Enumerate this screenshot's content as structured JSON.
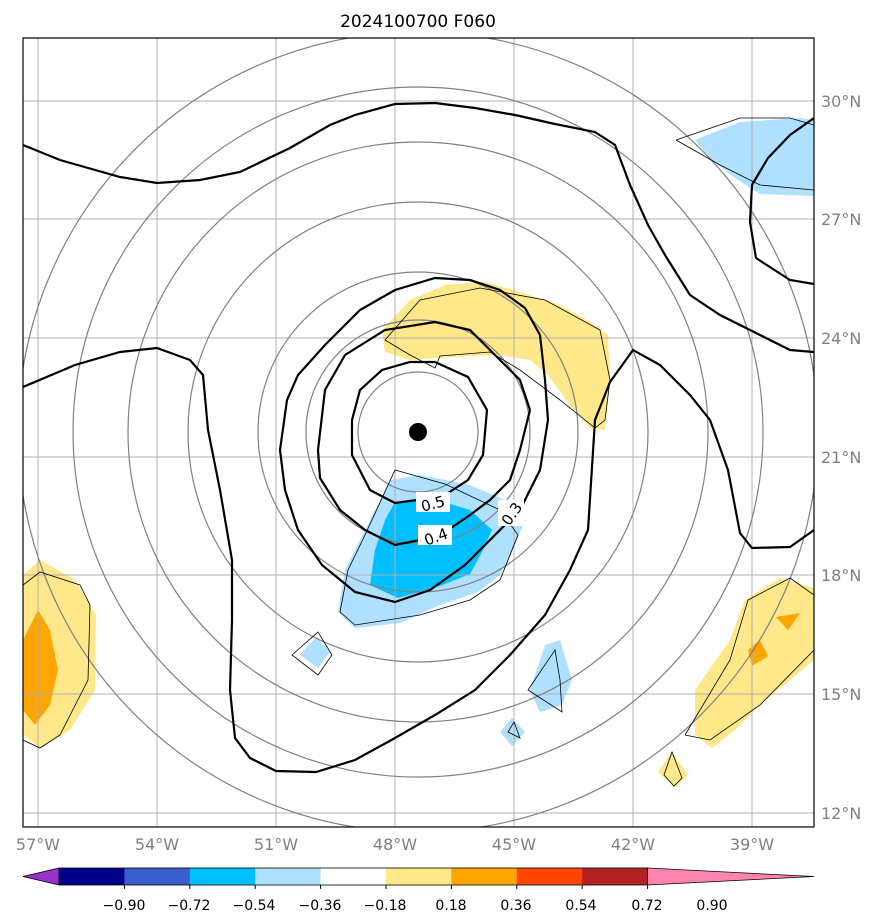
{
  "title": "2024100700 F060",
  "map": {
    "lon_ticks": [
      "57°W",
      "54°W",
      "51°W",
      "48°W",
      "45°W",
      "42°W",
      "39°W"
    ],
    "lat_ticks": [
      "30°N",
      "27°N",
      "24°N",
      "21°N",
      "18°N",
      "15°N",
      "12°N"
    ],
    "contour_labels": [
      "0.5",
      "0.4",
      "0.3"
    ],
    "storm_center": {
      "lon": -47.6,
      "lat": 21.7
    }
  },
  "colorbar": {
    "labels": [
      "−0.90",
      "−0.72",
      "−0.54",
      "−0.36",
      "−0.18",
      "0.18",
      "0.36",
      "0.54",
      "0.72",
      "0.90"
    ],
    "colors": [
      "#9932cc",
      "#00008b",
      "#3a5fcd",
      "#00bfff",
      "#b0e0ff",
      "#ffffff",
      "#ffe88a",
      "#ffa500",
      "#ff4500",
      "#b22222",
      "#ff85b0"
    ]
  },
  "colors": {
    "grid": "#b0b0b0",
    "thin_circle": "#808080",
    "contour": "#000000",
    "light_blue": "#b0e0ff",
    "medium_blue": "#00bfff",
    "light_yellow": "#ffe88a",
    "orange": "#ffa500"
  }
}
